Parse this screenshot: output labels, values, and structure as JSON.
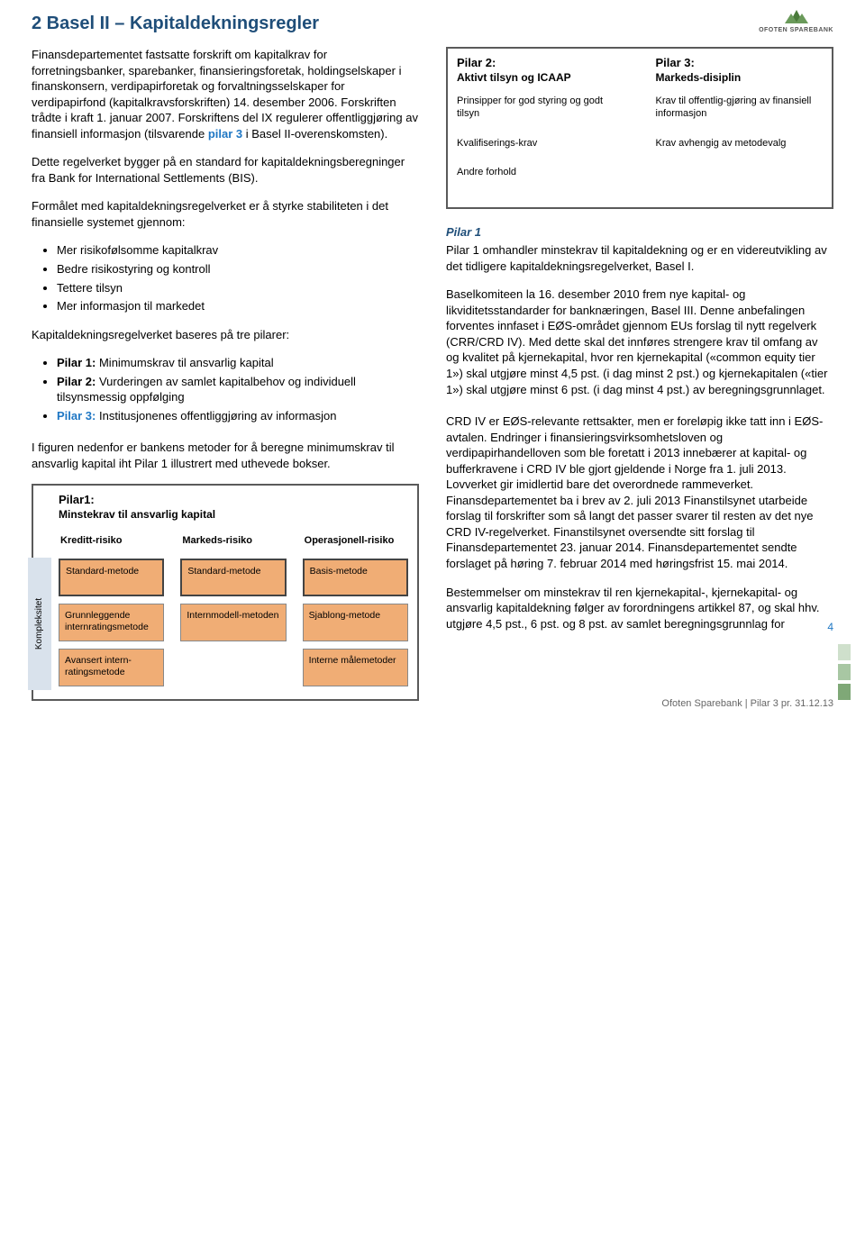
{
  "logo_text": "OFOTEN SPAREBANK",
  "heading": "2  Basel II – Kapitaldekningsregler",
  "left": {
    "p1a": "Finansdepartementet fastsatte forskrift om kapitalkrav for forretningsbanker, sparebanker, finansieringsforetak, holdingselskaper i finanskonsern, verdipapirforetak og forvaltningsselskaper for verdipapirfond (kapitalkravsforskriften) 14. desember 2006. Forskriften trådte i kraft 1. januar 2007. Forskriftens del IX regulerer offentliggjøring av finansiell informasjon (tilsvarende ",
    "p1_link": "pilar 3",
    "p1b": " i Basel II-overenskomsten).",
    "p2": "Dette regelverket bygger på en standard for kapitaldekningsberegninger fra Bank for International Settlements (BIS).",
    "p3": "Formålet med kapitaldekningsregelverket er å styrke stabiliteten i det finansielle systemet gjennom:",
    "list1": [
      "Mer risikofølsomme kapitalkrav",
      "Bedre risikostyring og kontroll",
      "Tettere tilsyn",
      "Mer informasjon til markedet"
    ],
    "p4": "Kapitaldekningsregelverket baseres på tre pilarer:",
    "list2_items": [
      {
        "b": "Pilar 1:",
        "t": " Minimumskrav til ansvarlig kapital"
      },
      {
        "b": "Pilar 2:",
        "t": " Vurderingen av samlet kapitalbehov og individuell tilsynsmessig oppfølging"
      },
      {
        "b": "Pilar 3:",
        "t": " Institusjonenes offentliggjøring av informasjon",
        "color": "#1f77c4"
      }
    ],
    "p5": "I figuren nedenfor er bankens metoder for å beregne minimumskrav til ansvarlig kapital iht Pilar 1 illustrert med uthevede bokser."
  },
  "pilar23_diagram": {
    "cols": [
      {
        "title": "Pilar 2:",
        "sub": "Aktivt tilsyn og ICAAP",
        "items": [
          "Prinsipper for god styring og godt tilsyn",
          "Kvalifiserings-krav",
          "Andre forhold"
        ]
      },
      {
        "title": "Pilar 3:",
        "sub": "Markeds-disiplin",
        "items": [
          "Krav til offentlig-gjøring av finansiell informasjon",
          "Krav avhengig av metodevalg"
        ]
      }
    ]
  },
  "right": {
    "hdr": "Pilar 1",
    "p1": "Pilar 1 omhandler minstekrav til kapitaldekning og er en videreutvikling av det tidligere kapitaldekningsregelverket, Basel I.",
    "p2": "Baselkomiteen la 16. desember 2010 frem nye kapital- og likviditetsstandarder for banknæringen, Basel III. Denne anbefalingen forventes innfaset i EØS-området gjennom EUs forslag til nytt regelverk (CRR/CRD IV). Med dette skal det innføres strengere krav til omfang av og kvalitet på kjernekapital, hvor ren kjernekapital («common equity tier 1») skal utgjøre minst 4,5 pst. (i dag minst 2 pst.) og kjernekapitalen («tier 1») skal utgjøre minst 6 pst. (i dag minst 4 pst.) av beregningsgrunnlaget.",
    "p3": "CRD IV er EØS-relevante rettsakter, men er foreløpig ikke tatt inn i EØS-avtalen. Endringer i finansieringsvirksomhetsloven og verdipapirhandelloven som ble foretatt i 2013 innebærer at kapital- og bufferkravene i CRD IV ble gjort gjeldende i Norge fra 1. juli 2013. Lovverket gir imidlertid bare det overordnede rammeverket. Finansdepartementet ba i brev av 2. juli 2013 Finanstilsynet utarbeide forslag til forskrifter som så langt det passer svarer til resten av det nye CRD IV-regelverket. Finanstilsynet oversendte sitt forslag til Finansdepartementet 23. januar 2014. Finansdepartementet sendte forslaget på høring 7. februar 2014 med høringsfrist 15. mai 2014.",
    "p4": "Bestemmelser om minstekrav til ren kjernekapital-, kjernekapital- og ansvarlig kapitaldekning følger av forordningens artikkel 87, og skal hhv. utgjøre 4,5 pst., 6 pst. og 8 pst. av samlet beregningsgrunnlag for"
  },
  "pilar1_diagram": {
    "title": "Pilar1:",
    "sub": "Minstekrav til ansvarlig kapital",
    "side": "Kompleksitet",
    "headers": [
      "Kreditt-risiko",
      "Markeds-risiko",
      "Operasjonell-risiko"
    ],
    "rows": [
      [
        {
          "t": "Standard-metode",
          "hl": true
        },
        {
          "t": "Standard-metode",
          "hl": true
        },
        {
          "t": "Basis-metode",
          "hl": true
        }
      ],
      [
        {
          "t": "Grunnleggende internratingsmetode",
          "hl": false
        },
        {
          "t": "Internmodell-metoden",
          "hl": false
        },
        {
          "t": "Sjablong-metode",
          "hl": false
        }
      ],
      [
        {
          "t": "Avansert intern-ratingsmetode",
          "hl": false
        },
        {
          "t": "",
          "hl": false,
          "empty": true
        },
        {
          "t": "Interne målemetoder",
          "hl": false
        }
      ]
    ]
  },
  "page_num": "4",
  "footer": "Ofoten Sparebank | Pilar 3 pr. 31.12.13",
  "deco_colors": [
    "#cfe0cc",
    "#a8c7a3",
    "#7fa877"
  ]
}
